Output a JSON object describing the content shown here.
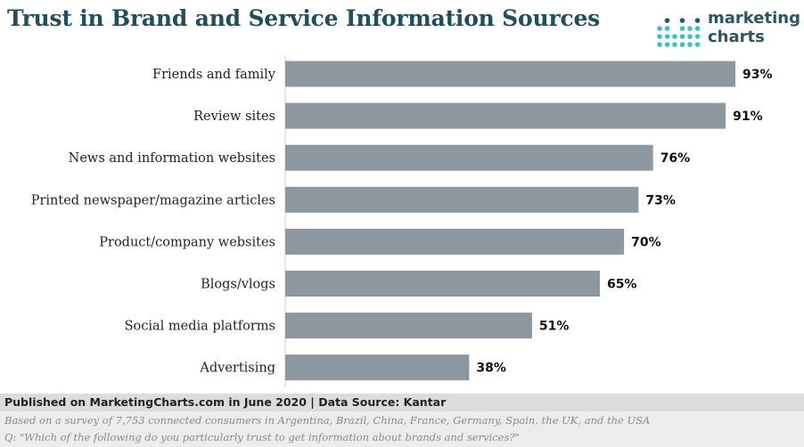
{
  "header": {
    "title": "Trust in Brand and Service Information Sources",
    "logo_line1": "marketing",
    "logo_line2": "charts"
  },
  "colors": {
    "bar": "#8c979f",
    "title": "#1f4e5f",
    "logo_dots": [
      "#3bbfc4",
      "#2a5566"
    ]
  },
  "chart_data": {
    "type": "bar",
    "orientation": "horizontal",
    "categories": [
      "Friends and family",
      "Review sites",
      "News and information websites",
      "Printed newspaper/magazine articles",
      "Product/company websites",
      "Blogs/vlogs",
      "Social media platforms",
      "Advertising"
    ],
    "values": [
      93,
      91,
      76,
      73,
      70,
      65,
      51,
      38
    ],
    "value_labels": [
      "93%",
      "91%",
      "76%",
      "73%",
      "70%",
      "65%",
      "51%",
      "38%"
    ],
    "xlim": [
      0,
      100
    ],
    "grid": false,
    "legend": "none"
  },
  "footer": {
    "source": "Published on MarketingCharts.com in June 2020 | Data Source: Kantar",
    "note1": "Based on a survey of 7,753 connected consumers in Argentina, Brazil, China, France, Germany, Spain, the UK, and the USA",
    "note2": "Q: \"Which of the following do you particularly trust to get information about brands and services?\""
  }
}
